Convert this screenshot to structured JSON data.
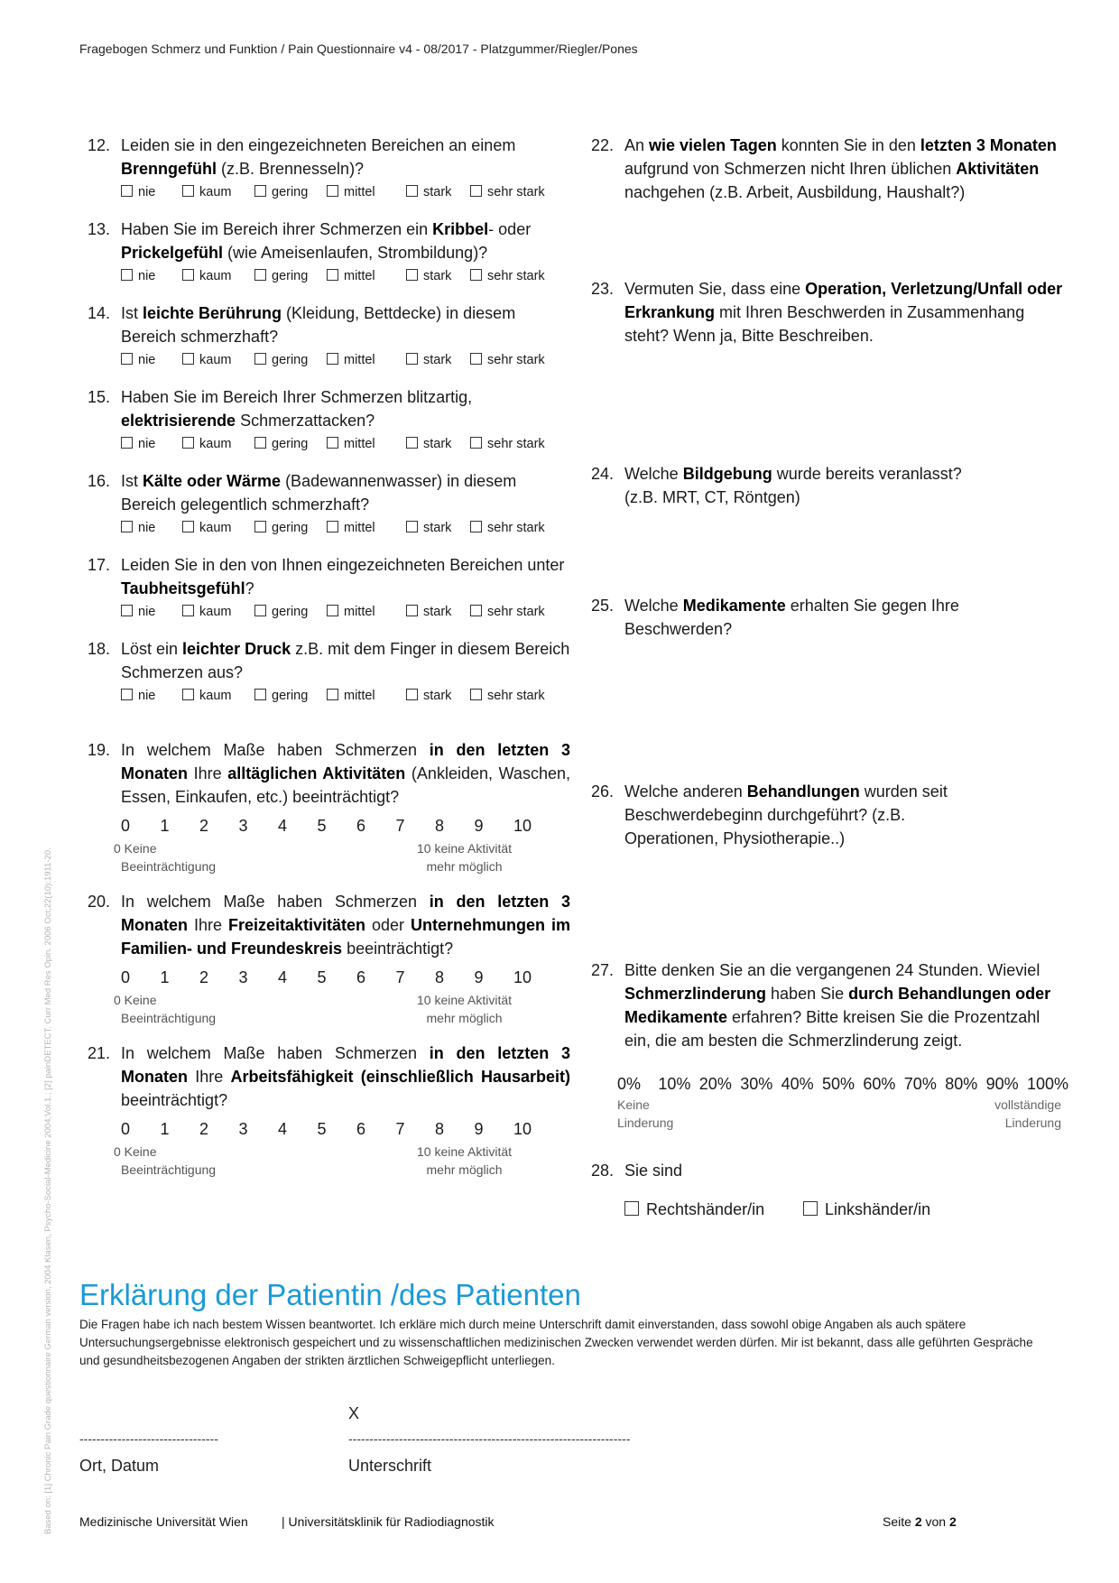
{
  "header": "Fragebogen Schmerz und Funktion / Pain Questionnaire v4 - 08/2017  - Platzgummer/Riegler/Pones",
  "side_note": "Based on: [1] Chronic Pain Grade questionnaire German version, 2004 Klasen, Psycho-Social-Medicine 2004;Vol.1.; [2] painDETECT. Curr Med Res Opin. 2006 Oct;22(10):1911-20.",
  "intensity_options": [
    "nie",
    "kaum",
    "gering",
    "mittel",
    "stark",
    "sehr stark"
  ],
  "left_questions": [
    {
      "num": "12.",
      "parts": [
        {
          "t": "Leiden sie in den eingezeichneten Bereichen an einem "
        },
        {
          "t": "Brenngefühl",
          "b": true
        },
        {
          "t": " (z.B. Brennesseln)?"
        }
      ]
    },
    {
      "num": "13.",
      "parts": [
        {
          "t": "Haben Sie im Bereich ihrer Schmerzen ein "
        },
        {
          "t": "Kribbel",
          "b": true
        },
        {
          "t": "- oder "
        },
        {
          "t": "Prickelgefühl",
          "b": true
        },
        {
          "t": " (wie Ameisenlaufen, Strombildung)?"
        }
      ]
    },
    {
      "num": "14.",
      "parts": [
        {
          "t": "Ist "
        },
        {
          "t": "leichte Berührung",
          "b": true
        },
        {
          "t": " (Kleidung, Bettdecke) in diesem Bereich schmerzhaft?"
        }
      ]
    },
    {
      "num": "15.",
      "parts": [
        {
          "t": "Haben Sie im Bereich Ihrer Schmerzen blitzartig, "
        },
        {
          "t": "elektrisierende",
          "b": true
        },
        {
          "t": " Schmerzattacken?"
        }
      ]
    },
    {
      "num": "16.",
      "parts": [
        {
          "t": "Ist "
        },
        {
          "t": "Kälte oder Wärme",
          "b": true
        },
        {
          "t": " (Badewannenwasser) in diesem Bereich gelegentlich schmerzhaft?"
        }
      ]
    },
    {
      "num": "17.",
      "parts": [
        {
          "t": "Leiden Sie in den von Ihnen eingezeichneten Bereichen unter "
        },
        {
          "t": "Taubheitsgefühl",
          "b": true
        },
        {
          "t": "?"
        }
      ]
    },
    {
      "num": "18.",
      "parts": [
        {
          "t": "Löst ein "
        },
        {
          "t": "leichter Druck",
          "b": true
        },
        {
          "t": " z.B. mit dem Finger in diesem Bereich Schmerzen aus?"
        }
      ]
    }
  ],
  "scale_numbers": [
    "0",
    "1",
    "2",
    "3",
    "4",
    "5",
    "6",
    "7",
    "8",
    "9",
    "10"
  ],
  "scale_low_label_1": "0 Keine",
  "scale_low_label_2": "Beeinträchtigung",
  "scale_high_label_1": "10 keine Aktivität",
  "scale_high_label_2": "mehr möglich",
  "scale_questions": [
    {
      "num": "19.",
      "parts": [
        {
          "t": "In welchem Maße haben Schmerzen "
        },
        {
          "t": "in den letzten 3 Monaten",
          "b": true
        },
        {
          "t": " Ihre "
        },
        {
          "t": "alltäglichen Aktivitäten",
          "b": true
        },
        {
          "t": " (Ankleiden, Waschen, Essen, Einkaufen, etc.) beeinträchtigt?"
        }
      ]
    },
    {
      "num": "20.",
      "parts": [
        {
          "t": "In welchem Maße haben Schmerzen "
        },
        {
          "t": "in den letzten 3 Monaten",
          "b": true
        },
        {
          "t": " Ihre "
        },
        {
          "t": "Freizeitaktivitäten",
          "b": true
        },
        {
          "t": " oder "
        },
        {
          "t": "Unternehmungen im Familien- und Freundeskreis",
          "b": true
        },
        {
          "t": " beeinträchtigt?"
        }
      ]
    },
    {
      "num": "21.",
      "parts": [
        {
          "t": "In welchem Maße haben Schmerzen "
        },
        {
          "t": "in den letzten 3 Monaten",
          "b": true
        },
        {
          "t": " Ihre "
        },
        {
          "t": "Arbeitsfähigkeit (einschließlich Hausarbeit)",
          "b": true
        },
        {
          "t": " beeinträchtigt?"
        }
      ]
    }
  ],
  "right_questions": [
    {
      "num": "22.",
      "parts": [
        {
          "t": "An "
        },
        {
          "t": "wie vielen Tagen",
          "b": true
        },
        {
          "t": " konnten Sie in den "
        },
        {
          "t": "letzten 3 Monaten",
          "b": true
        },
        {
          "t": " aufgrund von Schmerzen nicht Ihren üblichen "
        },
        {
          "t": "Aktivitäten",
          "b": true
        },
        {
          "t": " nachgehen (z.B. Arbeit, Ausbildung, Haushalt?)"
        }
      ]
    },
    {
      "num": "23.",
      "parts": [
        {
          "t": "Vermuten Sie, dass eine "
        },
        {
          "t": "Operation, Verletzung/Unfall oder Erkrankung",
          "b": true
        },
        {
          "t": " mit Ihren Beschwerden in Zusammenhang steht? Wenn ja, Bitte Beschreiben."
        }
      ]
    },
    {
      "num": "24.",
      "parts": [
        {
          "t": "Welche "
        },
        {
          "t": "Bildgebung",
          "b": true
        },
        {
          "t": " wurde bereits veranlasst? (z.B. MRT, CT, Röntgen)"
        }
      ]
    },
    {
      "num": "25.",
      "parts": [
        {
          "t": "Welche "
        },
        {
          "t": "Medikamente",
          "b": true
        },
        {
          "t": " erhalten Sie gegen Ihre Beschwerden?"
        }
      ]
    },
    {
      "num": "26.",
      "parts": [
        {
          "t": "Welche anderen "
        },
        {
          "t": "Behandlungen",
          "b": true
        },
        {
          "t": " wurden seit Beschwerdebeginn durchgeführt? (z.B. Operationen, Physiotherapie..)"
        }
      ]
    },
    {
      "num": "27.",
      "parts": [
        {
          "t": "Bitte denken Sie an die vergangenen 24 Stunden. Wieviel "
        },
        {
          "t": "Schmerzlinderung",
          "b": true
        },
        {
          "t": " haben Sie "
        },
        {
          "t": "durch Behandlungen oder Medikamente",
          "b": true
        },
        {
          "t": " erfahren? Bitte kreisen Sie die Prozentzahl ein, die am besten die Schmerzlinderung zeigt."
        }
      ]
    },
    {
      "num": "28.",
      "parts": [
        {
          "t": "Sie sind"
        }
      ]
    }
  ],
  "percent_scale": [
    "0%",
    "10%",
    "20%",
    "30%",
    "40%",
    "50%",
    "60%",
    "70%",
    "80%",
    "90%",
    "100%"
  ],
  "percent_low_1": "Keine",
  "percent_low_2": "Linderung",
  "percent_high_1": "vollständige",
  "percent_high_2": "Linderung",
  "hands": [
    "Rechtshänder/in",
    "Linkshänder/in"
  ],
  "declaration": {
    "title": "Erklärung der Patientin /des Patienten",
    "text": "Die Fragen habe ich nach bestem Wissen beantwortet. Ich erkläre mich durch meine Unterschrift damit einverstanden, dass sowohl obige Angaben als auch spätere Untersuchungsergebnisse elektronisch gespeichert und zu wissenschaftlichen medizinischen Zwecken verwendet werden dürfen. Mir ist bekannt, dass alle geführten Gespräche und gesundheitsbezogenen Angaben der strikten ärztlichen Schweigepflicht unterliegen."
  },
  "signature": {
    "x_mark": "X",
    "place_date_line": "---------------------------------",
    "signature_line": "-------------------------------------------------------------------",
    "place_date_label": "Ort, Datum",
    "signature_label": "Unterschrift"
  },
  "footer": {
    "left": "Medizinische Universität Wien",
    "middle": "| Universitätsklinik für Radiodiagnostik",
    "page_prefix": "Seite ",
    "page_current": "2",
    "page_mid": " von ",
    "page_total": "2"
  }
}
